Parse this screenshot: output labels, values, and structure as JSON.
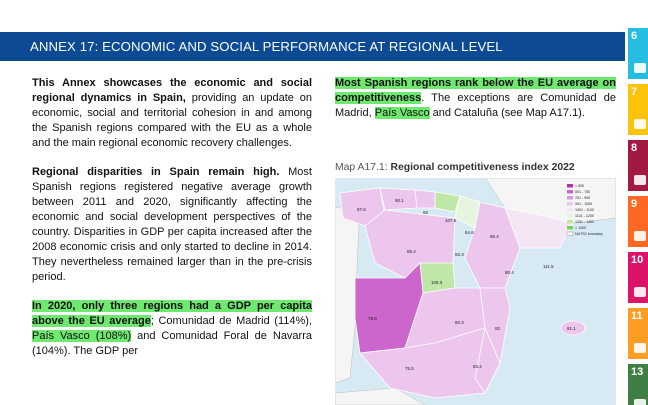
{
  "header": {
    "title": "ANNEX 17: ECONOMIC AND SOCIAL PERFORMANCE AT REGIONAL LEVEL"
  },
  "left": {
    "p1_bold": "This Annex showcases the economic and social regional dynamics in Spain,",
    "p1_rest": " providing an update on economic, social and territorial cohesion in and among the Spanish regions compared with the EU as a whole and the main regional economic recovery challenges.",
    "p2_bold": "Regional disparities in Spain remain high.",
    "p2_rest": " Most Spanish regions registered negative average growth between 2011 and 2020, significantly affecting the economic and social development perspectives of the country. Disparities in GDP per capita increased after the 2008 economic crisis and only started to decline in 2014. They nevertheless remained larger than in the pre-crisis period.",
    "p3_highlight": "In 2020, only three regions had a GDP per capita above the EU average",
    "p3_a": "; Comunidad de Madrid (114%), ",
    "p3_pv": "País Vasco (108%)",
    "p3_b": " and Comunidad Foral de Navarra (104%). The GDP per"
  },
  "right": {
    "p1_highlight": "Most Spanish regions rank below the EU average on competitiveness",
    "p1_a": ". The exceptions are Comunidad de Madrid, ",
    "p1_pv": "País Vasco",
    "p1_b": " and Cataluña (see Map A17.1).",
    "map_label": "Map A17.1: ",
    "map_title": "Regional competitiveness index 2022"
  },
  "map": {
    "legend": [
      "< 500",
      "501 - 750",
      "751 - 900",
      "901 - 1000",
      "1001 - 1100",
      "1101 - 1250",
      "1251 - 1400",
      "> 1400",
      "NUTS2 boundary"
    ],
    "legend_colors": [
      "#b232b2",
      "#cc66cc",
      "#dd99dd",
      "#ecc6ec",
      "#f5e6f5",
      "#e6f5e0",
      "#bfe8a8",
      "#7ccf5c",
      "#ffffff"
    ],
    "region_labels": [
      "87.6",
      "90.1",
      "92",
      "107.6",
      "84.6",
      "86.4",
      "111.5",
      "80.4",
      "85.4",
      "92.3",
      "109.3",
      "78.9",
      "80.3",
      "92",
      "75.5",
      "83.4",
      "81.1"
    ]
  },
  "sdg": [
    {
      "num": "6",
      "color": "#26bde2"
    },
    {
      "num": "7",
      "color": "#fcc30b"
    },
    {
      "num": "8",
      "color": "#a21942"
    },
    {
      "num": "9",
      "color": "#fd6925"
    },
    {
      "num": "10",
      "color": "#dd1367"
    },
    {
      "num": "11",
      "color": "#fd9d24"
    },
    {
      "num": "13",
      "color": "#3f7e44"
    }
  ],
  "colors": {
    "header": "#0c4a94",
    "highlight": "#6ee86e",
    "sea": "#d7eaf4",
    "land": "#f5f5f5"
  }
}
